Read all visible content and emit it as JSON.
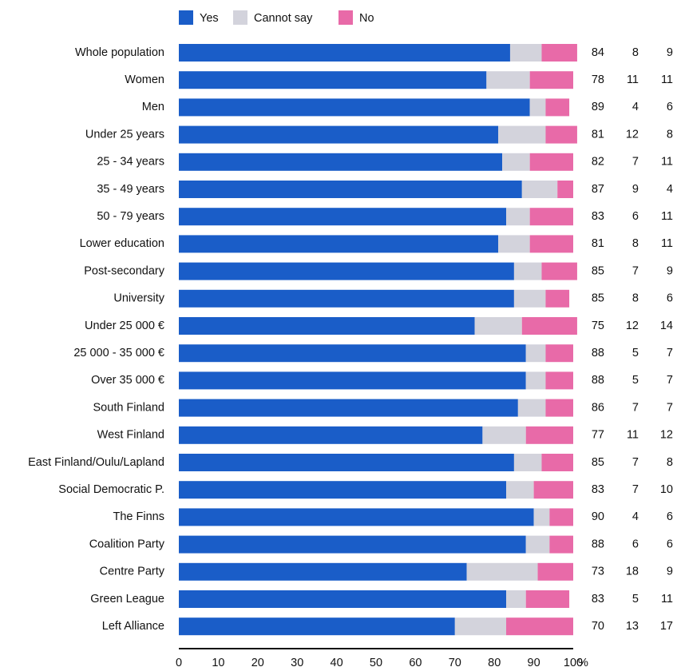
{
  "chart_data": {
    "type": "stacked_bar_horizontal",
    "categories": [
      "Whole population",
      "Women",
      "Men",
      "Under 25 years",
      "25 - 34 years",
      "35 - 49 years",
      "50 - 79 years",
      "Lower education",
      "Post-secondary",
      "University",
      "Under 25 000 €",
      "25 000 - 35 000 €",
      "Over 35 000 €",
      "South Finland",
      "West Finland",
      "East Finland/Oulu/Lapland",
      "Social Democratic P.",
      "The Finns",
      "Coalition Party",
      "Centre Party",
      "Green League",
      "Left Alliance"
    ],
    "series": [
      {
        "name": "Yes",
        "color": "#1a5dc8",
        "values": [
          84,
          78,
          89,
          81,
          82,
          87,
          83,
          81,
          85,
          85,
          75,
          88,
          88,
          86,
          77,
          85,
          83,
          90,
          88,
          73,
          83,
          70
        ]
      },
      {
        "name": "Cannot say",
        "color": "#d3d3dc",
        "values": [
          8,
          11,
          4,
          12,
          7,
          9,
          6,
          8,
          7,
          8,
          12,
          5,
          5,
          7,
          11,
          7,
          7,
          4,
          6,
          18,
          5,
          13
        ]
      },
      {
        "name": "No",
        "color": "#e86aa8",
        "values": [
          9,
          11,
          6,
          8,
          11,
          4,
          11,
          11,
          9,
          6,
          14,
          7,
          7,
          7,
          12,
          8,
          10,
          6,
          6,
          9,
          11,
          17
        ]
      }
    ],
    "xlim": [
      0,
      100
    ],
    "xticks": [
      0,
      10,
      20,
      30,
      40,
      50,
      60,
      70,
      80,
      90,
      100
    ],
    "xlabel": "%",
    "grid": false
  }
}
